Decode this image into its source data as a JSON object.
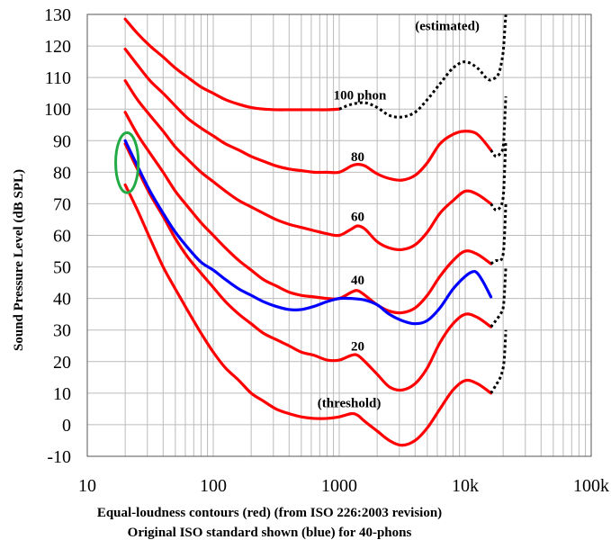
{
  "chart_data": {
    "type": "line",
    "xscale": "log",
    "xlim": [
      10,
      100000
    ],
    "ylim": [
      -10,
      130
    ],
    "x_tick_labels": [
      "10",
      "100",
      "1000",
      "10k",
      "100k"
    ],
    "y_ticks": [
      -10,
      0,
      10,
      20,
      30,
      40,
      50,
      60,
      70,
      80,
      90,
      100,
      110,
      120,
      130
    ],
    "ylabel": "Sound Pressure Level (dB SPL)",
    "caption_line1": "Equal-loudness contours (red) (from ISO 226:2003 revision)",
    "caption_line2": "Original ISO standard shown (blue) for 40-phons",
    "colors": {
      "red": "#ff0000",
      "blue": "#0000ff",
      "estimated": "#000000",
      "highlight": "#22aa44",
      "grid": "#bbbbbb"
    },
    "series": [
      {
        "name": "threshold",
        "label": "(threshold)",
        "color": "red",
        "dash": false,
        "label_pos": {
          "x": 1200,
          "y": 5.5
        },
        "points": [
          [
            20,
            76
          ],
          [
            25,
            68
          ],
          [
            31.5,
            59
          ],
          [
            40,
            50
          ],
          [
            50,
            43
          ],
          [
            63,
            36
          ],
          [
            80,
            29
          ],
          [
            100,
            23
          ],
          [
            125,
            18
          ],
          [
            160,
            14
          ],
          [
            200,
            10
          ],
          [
            250,
            7.5
          ],
          [
            315,
            5
          ],
          [
            400,
            3.5
          ],
          [
            500,
            2.5
          ],
          [
            630,
            2
          ],
          [
            800,
            2
          ],
          [
            1000,
            2.5
          ],
          [
            1250,
            3.5
          ],
          [
            1400,
            3
          ],
          [
            1600,
            1
          ],
          [
            2000,
            -2
          ],
          [
            2500,
            -5
          ],
          [
            3150,
            -6.5
          ],
          [
            4000,
            -5
          ],
          [
            5000,
            -1
          ],
          [
            6300,
            5
          ],
          [
            8000,
            11
          ],
          [
            10000,
            14
          ],
          [
            12500,
            13
          ],
          [
            16000,
            10
          ]
        ]
      },
      {
        "name": "20-phon",
        "label": "20",
        "color": "red",
        "dash": false,
        "label_pos": {
          "x": 1400,
          "y": 23.5
        },
        "points": [
          [
            20,
            89
          ],
          [
            25,
            81
          ],
          [
            31.5,
            73
          ],
          [
            40,
            66
          ],
          [
            50,
            59
          ],
          [
            63,
            53
          ],
          [
            80,
            48
          ],
          [
            100,
            43.5
          ],
          [
            125,
            39
          ],
          [
            160,
            35
          ],
          [
            200,
            32
          ],
          [
            250,
            29
          ],
          [
            315,
            27
          ],
          [
            400,
            25
          ],
          [
            500,
            23
          ],
          [
            630,
            22
          ],
          [
            800,
            20.5
          ],
          [
            1000,
            20.5
          ],
          [
            1250,
            22
          ],
          [
            1400,
            22
          ],
          [
            1600,
            20
          ],
          [
            2000,
            16
          ],
          [
            2500,
            12
          ],
          [
            3150,
            11
          ],
          [
            4000,
            13
          ],
          [
            5000,
            18
          ],
          [
            6300,
            26
          ],
          [
            8000,
            32
          ],
          [
            10000,
            35
          ],
          [
            12500,
            34
          ],
          [
            16000,
            31
          ]
        ]
      },
      {
        "name": "40-phon",
        "label": "40",
        "color": "red",
        "dash": false,
        "label_pos": {
          "x": 1400,
          "y": 44.5
        },
        "points": [
          [
            20,
            99
          ],
          [
            25,
            92
          ],
          [
            31.5,
            86
          ],
          [
            40,
            80
          ],
          [
            50,
            74
          ],
          [
            63,
            69
          ],
          [
            80,
            64
          ],
          [
            100,
            60
          ],
          [
            125,
            56
          ],
          [
            160,
            52
          ],
          [
            200,
            49
          ],
          [
            250,
            46
          ],
          [
            315,
            44
          ],
          [
            400,
            42
          ],
          [
            500,
            41
          ],
          [
            630,
            40.5
          ],
          [
            800,
            40
          ],
          [
            1000,
            40
          ],
          [
            1250,
            42
          ],
          [
            1400,
            42.5
          ],
          [
            1600,
            41
          ],
          [
            2000,
            38
          ],
          [
            2500,
            36
          ],
          [
            3150,
            35.5
          ],
          [
            4000,
            37
          ],
          [
            5000,
            41
          ],
          [
            6300,
            47
          ],
          [
            8000,
            52
          ],
          [
            10000,
            55
          ],
          [
            12500,
            54
          ],
          [
            16000,
            51
          ]
        ]
      },
      {
        "name": "60-phon",
        "label": "60",
        "color": "red",
        "dash": false,
        "label_pos": {
          "x": 1400,
          "y": 64.5
        },
        "points": [
          [
            20,
            109
          ],
          [
            25,
            103
          ],
          [
            31.5,
            98
          ],
          [
            40,
            93
          ],
          [
            50,
            88
          ],
          [
            63,
            84
          ],
          [
            80,
            80
          ],
          [
            100,
            77
          ],
          [
            125,
            74
          ],
          [
            160,
            71
          ],
          [
            200,
            69
          ],
          [
            250,
            67
          ],
          [
            315,
            65
          ],
          [
            400,
            63.5
          ],
          [
            500,
            62.5
          ],
          [
            630,
            61.5
          ],
          [
            800,
            60.5
          ],
          [
            1000,
            60
          ],
          [
            1250,
            62
          ],
          [
            1400,
            63
          ],
          [
            1600,
            62
          ],
          [
            2000,
            58
          ],
          [
            2500,
            56
          ],
          [
            3150,
            55.5
          ],
          [
            4000,
            57
          ],
          [
            5000,
            61
          ],
          [
            6300,
            67
          ],
          [
            8000,
            71
          ],
          [
            10000,
            74
          ],
          [
            12500,
            73
          ],
          [
            16000,
            70
          ]
        ]
      },
      {
        "name": "80-phon",
        "label": "80",
        "color": "red",
        "dash": false,
        "label_pos": {
          "x": 1400,
          "y": 83.5
        },
        "points": [
          [
            20,
            119
          ],
          [
            25,
            114
          ],
          [
            31.5,
            109
          ],
          [
            40,
            105
          ],
          [
            50,
            101
          ],
          [
            63,
            97
          ],
          [
            80,
            94
          ],
          [
            100,
            91.5
          ],
          [
            125,
            89
          ],
          [
            160,
            87
          ],
          [
            200,
            85
          ],
          [
            250,
            83.5
          ],
          [
            315,
            82
          ],
          [
            400,
            81
          ],
          [
            500,
            80.5
          ],
          [
            630,
            80
          ],
          [
            800,
            80
          ],
          [
            1000,
            80
          ],
          [
            1250,
            82
          ],
          [
            1400,
            82.5
          ],
          [
            1600,
            82
          ],
          [
            2000,
            79.5
          ],
          [
            2500,
            78
          ],
          [
            3150,
            77.5
          ],
          [
            4000,
            79
          ],
          [
            5000,
            83
          ],
          [
            6300,
            89
          ],
          [
            8000,
            92
          ],
          [
            10000,
            93
          ],
          [
            12500,
            92
          ],
          [
            16000,
            87
          ]
        ]
      },
      {
        "name": "100-phon",
        "label": "100 phon",
        "color": "red",
        "dash": false,
        "label_pos": {
          "x": 900,
          "y": 103
        },
        "points": [
          [
            20,
            128.5
          ],
          [
            25,
            124
          ],
          [
            31.5,
            120
          ],
          [
            40,
            116.5
          ],
          [
            50,
            113
          ],
          [
            63,
            110
          ],
          [
            80,
            107
          ],
          [
            100,
            105
          ],
          [
            125,
            103
          ],
          [
            160,
            101.5
          ],
          [
            200,
            100.5
          ],
          [
            250,
            100
          ],
          [
            315,
            99.8
          ],
          [
            400,
            99.8
          ],
          [
            500,
            99.8
          ],
          [
            630,
            99.8
          ],
          [
            800,
            99.8
          ],
          [
            1000,
            100
          ]
        ]
      },
      {
        "name": "100-phon-estimated",
        "label": "(estimated)",
        "color": "estimated",
        "dash": true,
        "label_pos": {
          "x": 4000,
          "y": 125
        },
        "points": [
          [
            1000,
            100
          ],
          [
            1250,
            101.5
          ],
          [
            1600,
            102
          ],
          [
            2000,
            100.5
          ],
          [
            2500,
            98
          ],
          [
            3150,
            97.5
          ],
          [
            4000,
            99
          ],
          [
            5000,
            103
          ],
          [
            6300,
            108
          ],
          [
            8000,
            113
          ],
          [
            10000,
            115
          ],
          [
            12500,
            113
          ],
          [
            15000,
            109.5
          ],
          [
            16500,
            109.5
          ],
          [
            18000,
            110.5
          ],
          [
            19000,
            113
          ],
          [
            20000,
            118
          ],
          [
            20500,
            124
          ],
          [
            21000,
            130
          ]
        ]
      },
      {
        "name": "80-phon-estimated",
        "label": "",
        "color": "estimated",
        "dash": true,
        "points": [
          [
            16000,
            87
          ],
          [
            17500,
            85
          ],
          [
            19000,
            86
          ],
          [
            20000,
            88
          ],
          [
            20500,
            95
          ],
          [
            21000,
            104
          ]
        ]
      },
      {
        "name": "60-phon-estimated",
        "label": "",
        "color": "estimated",
        "dash": true,
        "points": [
          [
            16000,
            70
          ],
          [
            17500,
            68
          ],
          [
            19000,
            69
          ],
          [
            20000,
            72
          ],
          [
            20500,
            80
          ],
          [
            21000,
            90
          ]
        ]
      },
      {
        "name": "40-phon-estimated",
        "label": "",
        "color": "estimated",
        "dash": true,
        "points": [
          [
            16000,
            51
          ],
          [
            17500,
            52
          ],
          [
            19000,
            52
          ],
          [
            20000,
            54
          ],
          [
            20500,
            60
          ],
          [
            21000,
            70
          ]
        ]
      },
      {
        "name": "20-phon-estimated",
        "label": "",
        "color": "estimated",
        "dash": true,
        "points": [
          [
            16000,
            31
          ],
          [
            17500,
            33
          ],
          [
            19000,
            35
          ],
          [
            20000,
            37
          ],
          [
            20500,
            42
          ],
          [
            21000,
            50
          ]
        ]
      },
      {
        "name": "threshold-estimated",
        "label": "",
        "color": "estimated",
        "dash": true,
        "points": [
          [
            16000,
            10
          ],
          [
            17500,
            12.5
          ],
          [
            19000,
            15
          ],
          [
            20000,
            18
          ],
          [
            20500,
            22
          ],
          [
            21000,
            30
          ]
        ]
      },
      {
        "name": "40-phon-original-iso",
        "label": "",
        "color": "blue",
        "dash": false,
        "points": [
          [
            20,
            90
          ],
          [
            25,
            82
          ],
          [
            31.5,
            74
          ],
          [
            40,
            67
          ],
          [
            50,
            61
          ],
          [
            63,
            56
          ],
          [
            80,
            51.5
          ],
          [
            100,
            49
          ],
          [
            125,
            46
          ],
          [
            160,
            43
          ],
          [
            200,
            41
          ],
          [
            250,
            39
          ],
          [
            315,
            37.5
          ],
          [
            400,
            36.5
          ],
          [
            500,
            36.5
          ],
          [
            630,
            37.5
          ],
          [
            800,
            39
          ],
          [
            1000,
            40
          ],
          [
            1250,
            40
          ],
          [
            1600,
            39.5
          ],
          [
            2000,
            38
          ],
          [
            2500,
            35
          ],
          [
            3150,
            33
          ],
          [
            4000,
            32
          ],
          [
            5000,
            33
          ],
          [
            6300,
            37
          ],
          [
            8000,
            43
          ],
          [
            10000,
            47
          ],
          [
            11500,
            48.5
          ],
          [
            12500,
            48
          ],
          [
            14000,
            45
          ],
          [
            16000,
            40.5
          ]
        ]
      }
    ],
    "highlight_ellipse": {
      "cx": 20,
      "cy": 83,
      "rx_decades": 0.09,
      "ry_db": 9.5
    }
  }
}
